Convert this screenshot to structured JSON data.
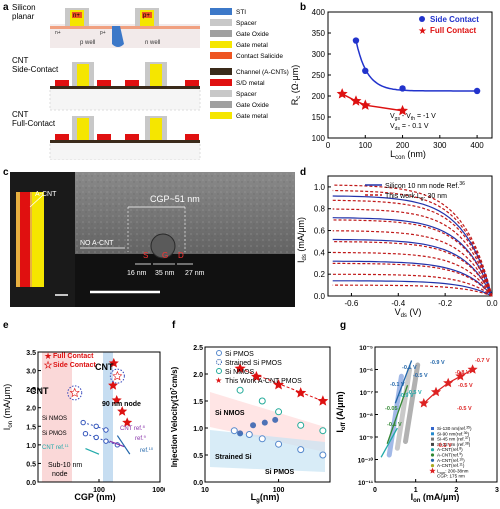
{
  "panels": {
    "a": {
      "letter": "a",
      "rows": [
        {
          "title_lines": [
            "Silicon",
            "planar"
          ]
        },
        {
          "title_lines": [
            "CNT",
            "Side-Contact"
          ]
        },
        {
          "title_lines": [
            "CNT",
            "Full-Contact"
          ]
        }
      ],
      "diagram_labels": {
        "n1": "n+",
        "p1": "p+",
        "n2": "n+",
        "p2": "p+",
        "pwell": "p well",
        "nwell": "n well"
      },
      "legend1": [
        {
          "label": "STI",
          "color": "#3c78c8"
        },
        {
          "label": "Spacer",
          "color": "#c8c8c8"
        },
        {
          "label": "Gate Oxide",
          "color": "#a0a0a0"
        },
        {
          "label": "Gate metal",
          "color": "#f5e600"
        },
        {
          "label": "Contact Salicide",
          "color": "#ee5522"
        }
      ],
      "legend2": [
        {
          "label": "Channel (A-CNTs)",
          "color": "#3a2a1a"
        },
        {
          "label": "S/D metal",
          "color": "#e01010"
        },
        {
          "label": "Spacer",
          "color": "#c8c8c8"
        },
        {
          "label": "Gate Oxide",
          "color": "#a0a0a0"
        },
        {
          "label": "Gate metal",
          "color": "#f5e600"
        }
      ]
    },
    "b": {
      "letter": "b",
      "ylabel": "R",
      "ylabel_sub": "c",
      "ylabel_unit": " (Ω·μm)",
      "xlabel": "L",
      "xlabel_sub": "con",
      "xlabel_unit": " (nm)",
      "yticks": [
        "100",
        "150",
        "200",
        "250",
        "300",
        "350",
        "400"
      ],
      "xticks": [
        "0",
        "100",
        "200",
        "300",
        "400"
      ],
      "legend": [
        "Side Contact",
        "Full Contact"
      ],
      "ann1": "V",
      "ann1_sub1": "gs",
      "ann1_mid": " - V",
      "ann1_sub2": "th",
      "ann1_end": " = -1 V",
      "ann2": "V",
      "ann2_sub": "ds",
      "ann2_end": " = - 0.1 V"
    },
    "c": {
      "letter": "c",
      "labels": {
        "acnt": "A-CNT",
        "noacnt": "NO A-CNT",
        "cgp": "CGP~51 nm",
        "s": "S",
        "g": "G",
        "d": "D",
        "d1": "16 nm",
        "d2": "35 nm",
        "d3": "27 nm"
      }
    },
    "d": {
      "letter": "d",
      "ylabel": "I",
      "ylabel_sub": "ds",
      "ylabel_unit": " (mA/μm)",
      "xlabel": "V",
      "xlabel_sub": "ds",
      "xlabel_unit": " (V)",
      "yticks": [
        "0.0",
        "0.2",
        "0.4",
        "0.6",
        "0.8",
        "1.0"
      ],
      "xticks": [
        "-0.6",
        "-0.4",
        "-0.2",
        "0.0"
      ],
      "legend1": "Silicon 10 nm node Ref.",
      "legend1_sup": "36",
      "legend2": "This work L",
      "legend2_sub": "g",
      "legend2_end": ": 30 nm"
    },
    "e": {
      "letter": "e",
      "ylabel": "I",
      "ylabel_sub": "on",
      "ylabel_unit": " (mA/μm)",
      "xlabel": "CGP (nm)",
      "yticks": [
        "0.0",
        "0.5",
        "1.0",
        "1.5",
        "2.0",
        "2.5",
        "3.0",
        "3.5"
      ],
      "xticks": [
        "100",
        "1000"
      ],
      "legend": [
        "Full Contact",
        "Side Contact"
      ],
      "labels": {
        "cnt1": "CNT",
        "cnt2": "CNT",
        "node90": "90 nm node",
        "sinmos": "Si NMOS",
        "sipmos": "Si PMOS",
        "ref8": "CNT ref.",
        "ref8sup": "8",
        "ref9": "ref.",
        "ref9sup": "9",
        "ref10": "ref.",
        "ref10sup": "10",
        "ref11": "CNT ref.",
        "ref11sup": "11",
        "sub10": "Sub-10 nm",
        "node": "node"
      }
    },
    "f": {
      "letter": "f",
      "ylabel": "Injection Velocity(10",
      "ylabel_sup": "7",
      "ylabel_unit": "cm/s)",
      "xlabel": "L",
      "xlabel_sub": "g",
      "xlabel_unit": "(nm)",
      "yticks": [
        "0.0",
        "0.5",
        "1.0",
        "1.5",
        "2.0",
        "2.5"
      ],
      "xticks": [
        "10",
        "100"
      ],
      "legend": [
        "Si PMOS",
        "Strained Si PMOS",
        "Si NMOS",
        "This Work A-CNT PMOS"
      ],
      "labels": {
        "sinmos": "Si NMOS",
        "strained": "Strained Si",
        "sipmos": "Si PMOS"
      }
    },
    "g": {
      "letter": "g",
      "ylabel": "I",
      "ylabel_sub": "off",
      "ylabel_unit": " (A/μm)",
      "xlabel": "I",
      "xlabel_sub": "on",
      "xlabel_unit": " (mA/μm)",
      "yticks": [
        "10⁻¹¹",
        "10⁻¹⁰",
        "10⁻⁹",
        "10⁻⁸",
        "10⁻⁷",
        "10⁻⁶",
        "10⁻⁵"
      ],
      "xticks": [
        "0",
        "1",
        "2",
        "3"
      ],
      "legend": [
        {
          "label": "Si-130 nm(ref.",
          "sup": "35",
          "end": ")",
          "color": "#3366cc",
          "shape": "sq"
        },
        {
          "label": "Si-90 nm(ref.",
          "sup": "36",
          "end": ")",
          "color": "#2288cc",
          "shape": "sq"
        },
        {
          "label": "Si-45 nm (ref.",
          "sup": "37",
          "end": ")",
          "color": "#777777",
          "shape": "sq"
        },
        {
          "label": "Si-32 nm (ref.",
          "sup": "38",
          "end": ")",
          "color": "#444444",
          "shape": "sq"
        },
        {
          "label": "A-CNT(ref.",
          "sup": "8",
          "end": ")",
          "color": "#22aaaa",
          "shape": "ci"
        },
        {
          "label": "A-CNT(ref.",
          "sup": "9",
          "end": ")",
          "color": "#338833",
          "shape": "ci"
        },
        {
          "label": "A-CNT(ref.",
          "sup": "10",
          "end": ")",
          "color": "#2266aa",
          "shape": "ci"
        },
        {
          "label": "A-CNT(ref.",
          "sup": "11",
          "end": ")",
          "color": "#aaaa22",
          "shape": "ci"
        },
        {
          "label": "L",
          "sub": "con",
          "end": ": 200-38nm",
          "color": "#dd2222",
          "shape": "st"
        },
        {
          "label": "CGP: 175 nm",
          "color": "#dd2222",
          "shape": "none"
        }
      ],
      "anns": [
        "-0.9 V",
        "-0.1 V",
        "-0.5 V",
        "-0.1 V",
        "-0.9 V",
        "-0.5 V",
        "-0.05",
        "-0.1 V",
        "-0.8 V",
        "-0.5 V",
        "-0.5 V",
        "-0.7 V",
        "-0.1 V"
      ]
    }
  },
  "chart_data": [
    {
      "panel": "b",
      "type": "scatter",
      "xlabel": "Lcon (nm)",
      "ylabel": "Rc (Ω·μm)",
      "xlim": [
        0,
        440
      ],
      "ylim": [
        100,
        400
      ],
      "series": [
        {
          "name": "Side Contact",
          "color": "#2233cc",
          "x": [
            75,
            100,
            200,
            400
          ],
          "y": [
            332,
            260,
            218,
            212
          ]
        },
        {
          "name": "Full Contact",
          "color": "#dd1111",
          "x": [
            38,
            75,
            100,
            200
          ],
          "y": [
            205,
            188,
            178,
            165
          ]
        }
      ]
    },
    {
      "panel": "d",
      "type": "line",
      "xlabel": "Vds (V)",
      "ylabel": "Ids (mA/μm)",
      "xlim": [
        -0.7,
        0.0
      ],
      "ylim": [
        0,
        1.1
      ],
      "series": [
        {
          "name": "Silicon 10 nm node Ref. 36",
          "color": "#2233aa",
          "dash": false,
          "saturation": [
            0.92,
            0.72,
            0.52,
            0.32,
            0.14
          ]
        },
        {
          "name": "This work Lg: 30 nm",
          "color": "#c01818",
          "dash": true,
          "saturation": [
            1.02,
            0.97,
            0.88,
            0.8,
            0.7,
            0.6,
            0.5,
            0.4,
            0.3,
            0.2,
            0.1
          ]
        }
      ]
    },
    {
      "panel": "e",
      "type": "scatter",
      "xlabel": "CGP (nm)",
      "ylabel": "Ion (mA/μm)",
      "xlim": [
        10,
        1000
      ],
      "ylim": [
        0,
        3.5
      ],
      "series": [
        {
          "name": "Full Contact",
          "color": "#dd1111",
          "x": [
            175,
            170,
            195,
            240,
            290
          ],
          "y": [
            3.2,
            2.6,
            2.2,
            1.9,
            1.6
          ]
        },
        {
          "name": "Side Contact",
          "color": "#dd1111",
          "x": [
            40,
            200
          ],
          "y": [
            2.4,
            2.85
          ]
        },
        {
          "name": "Si NMOS",
          "color": "#3355bb",
          "x": [
            55,
            90,
            130
          ],
          "y": [
            1.6,
            1.5,
            1.4
          ]
        },
        {
          "name": "Si PMOS",
          "color": "#3355bb",
          "x": [
            60,
            90,
            130,
            200
          ],
          "y": [
            1.3,
            1.2,
            1.1,
            1.0
          ]
        }
      ]
    },
    {
      "panel": "f",
      "type": "scatter",
      "xlabel": "Lg (nm)",
      "ylabel": "Injection Velocity (10^7 cm/s)",
      "xlim": [
        10,
        500
      ],
      "ylim": [
        0,
        2.5
      ],
      "series": [
        {
          "name": "Si PMOS",
          "color": "#5588cc",
          "x": [
            25,
            40,
            60,
            100,
            200,
            400
          ],
          "y": [
            0.95,
            0.88,
            0.8,
            0.7,
            0.6,
            0.5
          ]
        },
        {
          "name": "Strained Si PMOS",
          "color": "#2255aa",
          "x": [
            30,
            45,
            65,
            90
          ],
          "y": [
            0.9,
            1.05,
            1.1,
            1.15
          ]
        },
        {
          "name": "Si NMOS",
          "color": "#22aa99",
          "x": [
            30,
            60,
            100,
            200,
            400
          ],
          "y": [
            1.7,
            1.5,
            1.3,
            1.05,
            0.95
          ]
        },
        {
          "name": "This Work A-CNT PMOS",
          "color": "#dd1111",
          "x": [
            30,
            50,
            100,
            200,
            400
          ],
          "y": [
            2.1,
            1.95,
            1.8,
            1.65,
            1.5
          ]
        }
      ]
    },
    {
      "panel": "g",
      "type": "scatter",
      "xlabel": "Ion (mA/μm)",
      "ylabel": "Ioff (A/μm)",
      "xlim": [
        0,
        3
      ],
      "ylim": [
        -11,
        -5
      ],
      "series": [
        {
          "name": "Lcon: 200-38nm",
          "color": "#dd2222",
          "x": [
            1.2,
            1.5,
            1.8,
            2.1,
            2.4
          ],
          "y": [
            -7.5,
            -7.0,
            -6.6,
            -6.3,
            -6.0
          ]
        },
        {
          "name": "Si-130 nm",
          "color": "#3366cc",
          "x": [
            0.4,
            0.6,
            0.8
          ],
          "y": [
            -8.7,
            -7.6,
            -6.5
          ]
        },
        {
          "name": "A-CNT(ref.8)",
          "color": "#22aaaa",
          "x": [
            0.3,
            0.5
          ],
          "y": [
            -9.8,
            -9.2
          ]
        }
      ]
    }
  ]
}
